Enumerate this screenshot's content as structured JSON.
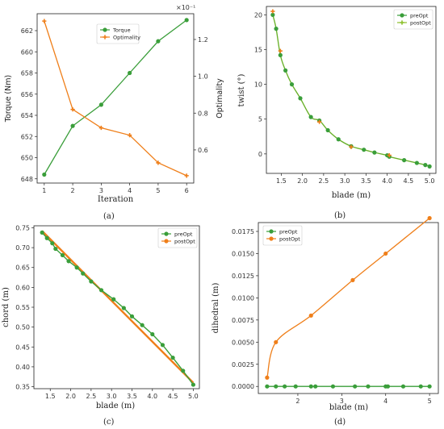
{
  "colors": {
    "green": "#3a9e3a",
    "orange": "#ef7f1a",
    "line_green": "#8bbf2a",
    "axis": "#222222"
  },
  "chart_data": [
    {
      "id": "a",
      "panel_label": "(a)",
      "type": "line",
      "xlabel": "Iteration",
      "x": [
        1,
        2,
        3,
        4,
        5,
        6
      ],
      "xticks": [
        "1",
        "2",
        "3",
        "4",
        "5",
        "6"
      ],
      "series": [
        {
          "name": "Torque",
          "axis": "left",
          "color": "#3a9e3a",
          "marker": "circle",
          "values": [
            648.4,
            653.0,
            655.0,
            658.0,
            661.0,
            663.0
          ]
        },
        {
          "name": "Optimality",
          "axis": "right",
          "color": "#ef7f1a",
          "marker": "plus",
          "values": [
            1.3,
            0.82,
            0.72,
            0.68,
            0.53,
            0.46
          ]
        }
      ],
      "ylabel_left": "Torque (Nm)",
      "ylim_left": [
        647.6,
        663.6
      ],
      "yticks_left": [
        "648",
        "650",
        "652",
        "654",
        "656",
        "658",
        "660",
        "662"
      ],
      "ylabel_right": "Optimality",
      "ylim_right": [
        0.42,
        1.34
      ],
      "yticks_right": [
        "0.6",
        "0.8",
        "1.0",
        "1.2"
      ],
      "right_scale_label": "×10⁻¹",
      "legend": "top-center",
      "grid": false
    },
    {
      "id": "b",
      "panel_label": "(b)",
      "type": "line",
      "xlabel": "blade (m)",
      "ylabel": "twist (°)",
      "xlim": [
        1.15,
        5.15
      ],
      "ylim": [
        -2.8,
        21.2
      ],
      "xticks": [
        "1.5",
        "2.0",
        "2.5",
        "3.0",
        "3.5",
        "4.0",
        "4.5",
        "5.0"
      ],
      "yticks": [
        "0",
        "5",
        "10",
        "15",
        "20"
      ],
      "series": [
        {
          "name": "preOpt",
          "color": "#3a9e3a",
          "marker": "circle",
          "x": [
            1.3,
            1.38,
            1.48,
            1.6,
            1.75,
            1.95,
            2.2,
            2.4,
            2.6,
            2.85,
            3.15,
            3.45,
            3.7,
            4.0,
            4.05,
            4.4,
            4.7,
            4.9,
            5.0
          ],
          "y": [
            20.0,
            18.0,
            14.2,
            12.0,
            10.0,
            8.0,
            5.3,
            4.8,
            3.4,
            2.1,
            1.1,
            0.6,
            0.2,
            -0.2,
            -0.4,
            -0.9,
            -1.3,
            -1.6,
            -1.8
          ]
        },
        {
          "name": "postOpt",
          "color": "#8bbf2a",
          "marker": "plus",
          "x": [
            1.3,
            1.48,
            2.4,
            3.15,
            4.05
          ],
          "y": [
            20.5,
            14.8,
            4.6,
            1.0,
            -0.2
          ]
        }
      ],
      "legend": "top-right",
      "grid": false
    },
    {
      "id": "c",
      "panel_label": "(c)",
      "type": "line",
      "xlabel": "blade (m)",
      "ylabel": "chord (m)",
      "xlim": [
        1.1,
        5.15
      ],
      "ylim": [
        0.345,
        0.755
      ],
      "xticks": [
        "1.5",
        "2.0",
        "2.5",
        "3.0",
        "3.5",
        "4.0",
        "4.5",
        "5.0"
      ],
      "yticks": [
        "0.35",
        "0.40",
        "0.45",
        "0.50",
        "0.55",
        "0.60",
        "0.65",
        "0.70",
        "0.75"
      ],
      "series": [
        {
          "name": "preOpt",
          "color": "#3a9e3a",
          "marker": "circle",
          "x": [
            1.3,
            1.42,
            1.55,
            1.63,
            1.8,
            1.95,
            2.15,
            2.3,
            2.5,
            2.75,
            3.05,
            3.3,
            3.5,
            3.75,
            4.0,
            4.25,
            4.5,
            4.75,
            5.0
          ],
          "y": [
            0.738,
            0.724,
            0.711,
            0.697,
            0.681,
            0.666,
            0.65,
            0.635,
            0.615,
            0.593,
            0.57,
            0.548,
            0.527,
            0.505,
            0.482,
            0.455,
            0.423,
            0.39,
            0.355
          ]
        },
        {
          "name": "postOpt",
          "color": "#ef7f1a",
          "marker": "plus",
          "x": [
            1.3,
            5.0
          ],
          "y": [
            0.742,
            0.36
          ]
        }
      ],
      "legend": "top-right",
      "grid": false
    },
    {
      "id": "d",
      "panel_label": "(d)",
      "type": "line",
      "xlabel": "blade (m)",
      "ylabel": "dihedral (m)",
      "xlim": [
        1.1,
        5.2
      ],
      "ylim": [
        -0.0008,
        0.0185
      ],
      "xticks": [
        "2",
        "3",
        "4",
        "5"
      ],
      "yticks": [
        "0.0000",
        "0.0025",
        "0.0050",
        "0.0075",
        "0.0100",
        "0.0125",
        "0.0150",
        "0.0175"
      ],
      "series": [
        {
          "name": "preOpt",
          "color": "#3a9e3a",
          "marker": "circle",
          "x": [
            1.3,
            1.5,
            1.7,
            1.95,
            2.3,
            2.4,
            2.8,
            3.3,
            3.6,
            4.0,
            4.05,
            4.4,
            4.8,
            5.0
          ],
          "y": [
            0,
            0,
            0,
            0,
            0,
            0,
            0,
            0,
            0,
            0,
            0,
            0,
            0,
            0
          ]
        },
        {
          "name": "postOpt",
          "color": "#ef7f1a",
          "marker": "circle",
          "x": [
            1.3,
            1.5,
            2.3,
            3.25,
            4.0,
            5.0
          ],
          "y": [
            0.001,
            0.005,
            0.008,
            0.012,
            0.015,
            0.019
          ]
        }
      ],
      "legend": "top-left",
      "grid": false
    }
  ]
}
